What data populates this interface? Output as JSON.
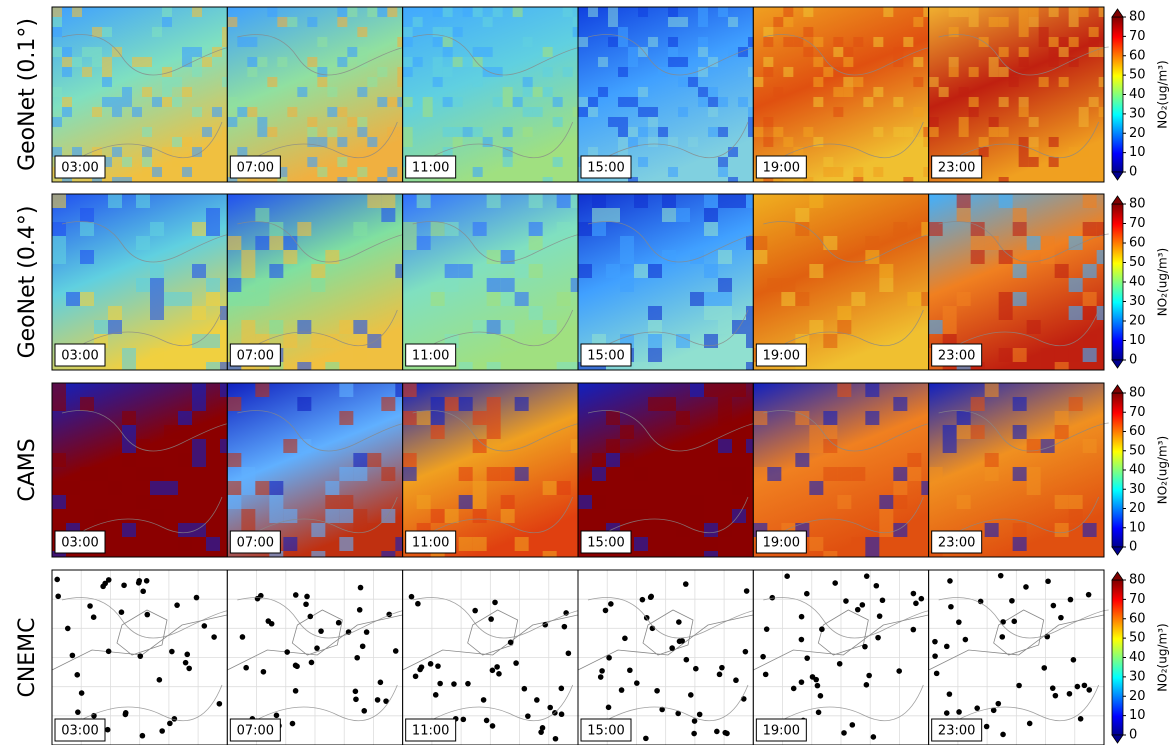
{
  "rows": [
    {
      "label": "GeoNet (0.1°)"
    },
    {
      "label": "GeoNet (0.4°)"
    },
    {
      "label": "CAMS"
    },
    {
      "label": "CNEMC"
    }
  ],
  "times": [
    "03:00",
    "07:00",
    "11:00",
    "15:00",
    "19:00",
    "23:00"
  ],
  "colorbar": {
    "label": "NO₂(ug/m³)",
    "lim": [
      0,
      80
    ],
    "ticks": [
      0,
      10,
      20,
      30,
      40,
      50,
      60,
      70,
      80
    ]
  }
}
